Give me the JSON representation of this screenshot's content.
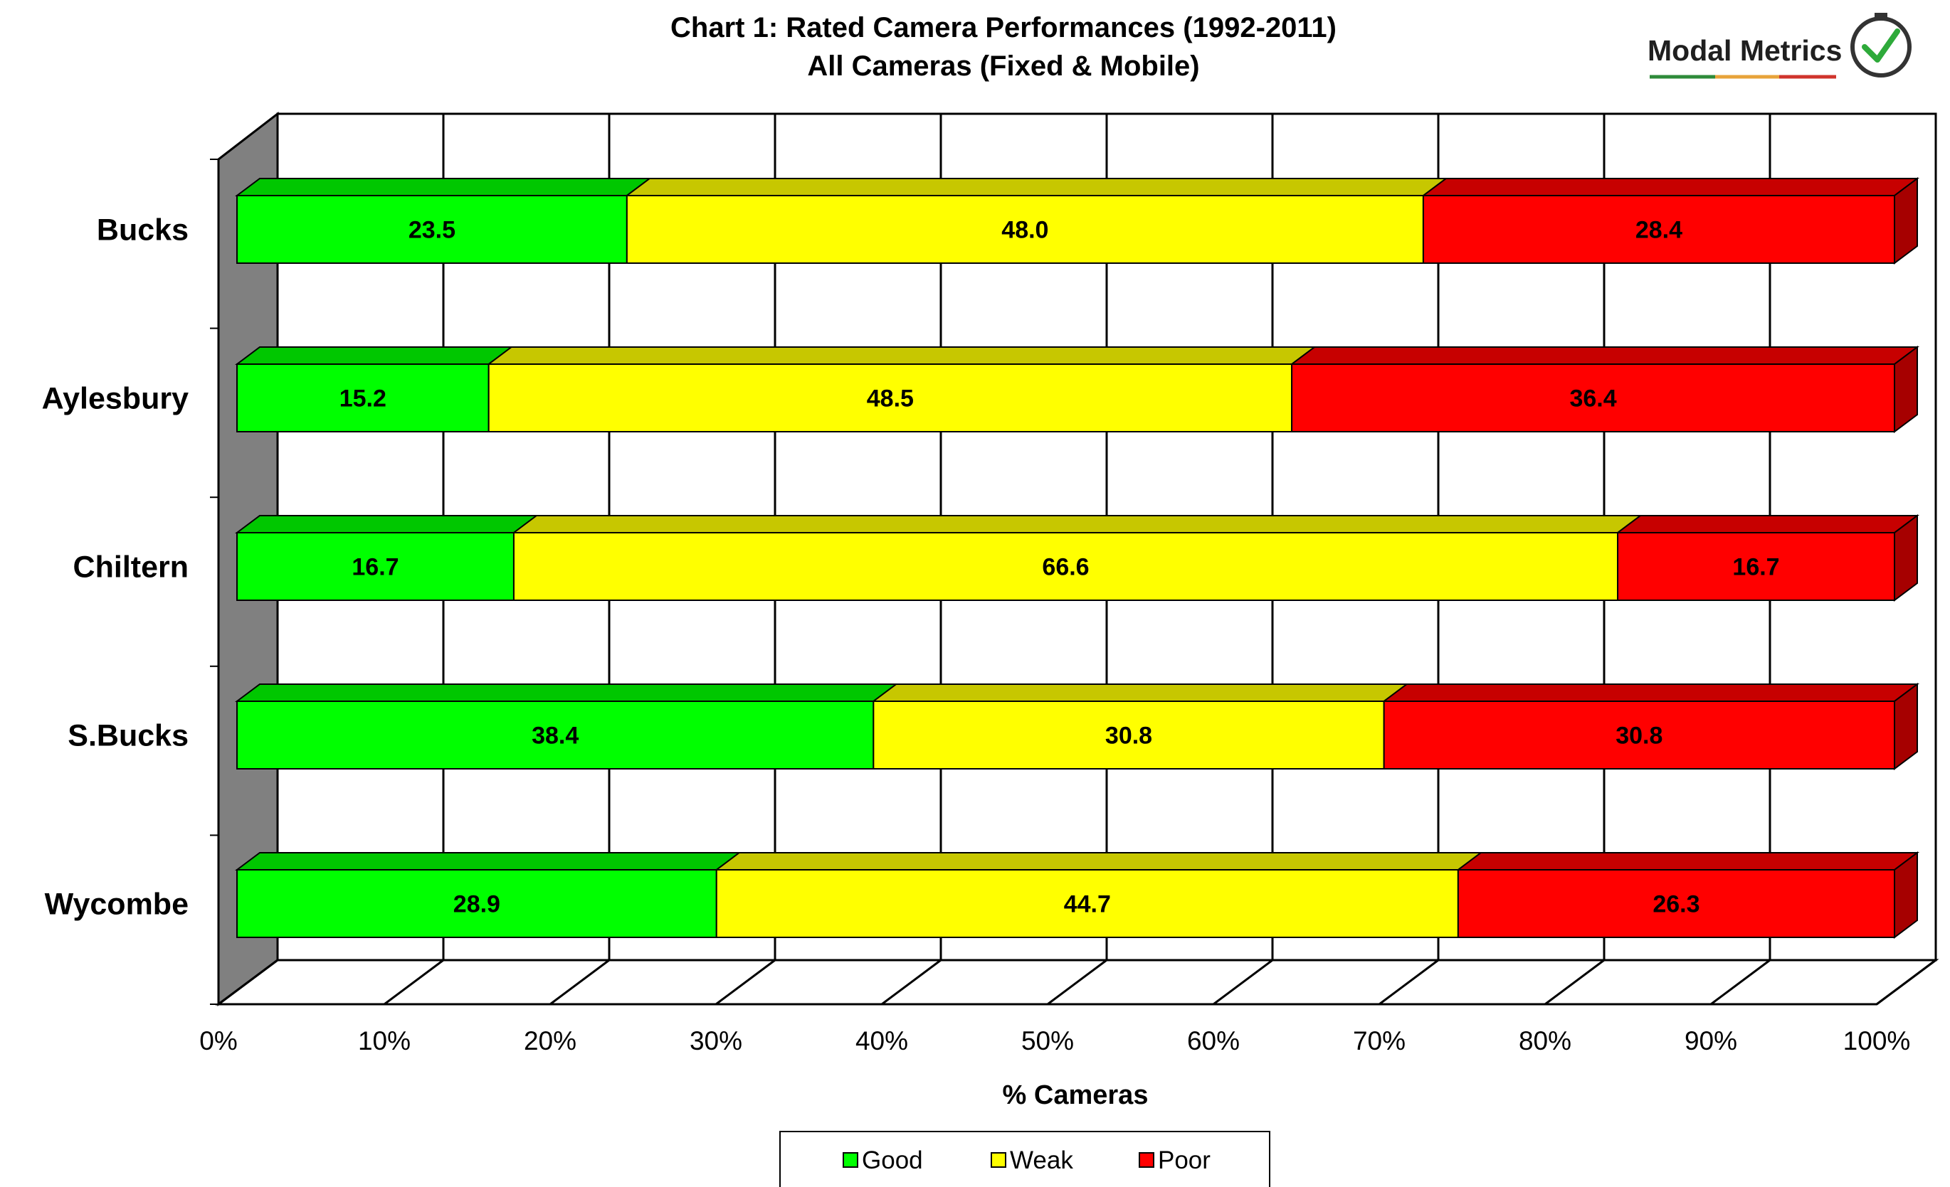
{
  "logo": {
    "text": "Modal Metrics"
  },
  "chart_data": {
    "type": "bar",
    "orientation": "horizontal",
    "stacked": "percent",
    "style": "3d",
    "title": "Chart 1: Rated Camera Performances (1992-2011)",
    "subtitle": "All Cameras (Fixed & Mobile)",
    "xlabel": "% Cameras",
    "ylabel": "",
    "xlim": [
      0,
      100
    ],
    "x_tick_labels": [
      "0%",
      "10%",
      "20%",
      "30%",
      "40%",
      "50%",
      "60%",
      "70%",
      "80%",
      "90%",
      "100%"
    ],
    "categories": [
      "Bucks",
      "Aylesbury",
      "Chiltern",
      "S.Bucks",
      "Wycombe"
    ],
    "series": [
      {
        "name": "Good",
        "color": "#00ff00",
        "values": [
          23.5,
          15.2,
          16.7,
          38.4,
          28.9
        ],
        "labels": [
          "23.5",
          "15.2",
          "16.7",
          "38.4",
          "28.9"
        ]
      },
      {
        "name": "Weak",
        "color": "#ffff00",
        "values": [
          48.0,
          48.5,
          66.6,
          30.8,
          44.7
        ],
        "labels": [
          "48.0",
          "48.5",
          "66.6",
          "30.8",
          "44.7"
        ]
      },
      {
        "name": "Poor",
        "color": "#ff0000",
        "values": [
          28.4,
          36.4,
          16.7,
          30.8,
          26.3
        ],
        "labels": [
          "28.4",
          "36.4",
          "16.7",
          "30.8",
          "26.3"
        ]
      }
    ],
    "grid": true,
    "legend_position": "bottom"
  }
}
